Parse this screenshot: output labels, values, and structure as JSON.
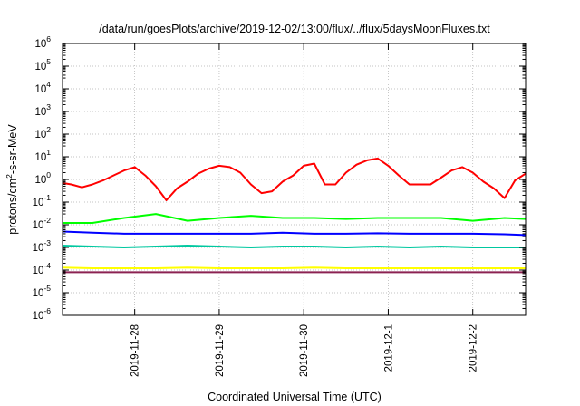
{
  "chart_data": {
    "type": "line",
    "title": "/data/run/goesPlots/archive/2019-12-02/13:00/flux/../flux/5daysMoonFluxes.txt",
    "xlabel": "Coordinated Universal Time (UTC)",
    "ylabel": "protons/cm²-s-sr-MeV",
    "yscale": "log",
    "ylim": [
      1e-06,
      1000000.0
    ],
    "xlim": [
      "2019-11-27T03:30",
      "2019-12-02T15:00"
    ],
    "x_tick_labels": [
      "2019-11-28",
      "2019-11-29",
      "2019-11-30",
      "2019-12-1",
      "2019-12-2"
    ],
    "x_tick_dates": [
      "2019-11-28T00:00",
      "2019-11-29T00:00",
      "2019-11-30T00:00",
      "2019-12-01T00:00",
      "2019-12-02T00:00"
    ],
    "y_ticks": [
      {
        "value": 1e-06,
        "base": "10",
        "exp": "-6"
      },
      {
        "value": 1e-05,
        "base": "10",
        "exp": "-5"
      },
      {
        "value": 0.0001,
        "base": "10",
        "exp": "-4"
      },
      {
        "value": 0.001,
        "base": "10",
        "exp": "-3"
      },
      {
        "value": 0.01,
        "base": "10",
        "exp": "-2"
      },
      {
        "value": 0.1,
        "base": "10",
        "exp": "-1"
      },
      {
        "value": 1,
        "base": "10",
        "exp": "0"
      },
      {
        "value": 10.0,
        "base": "10",
        "exp": "1"
      },
      {
        "value": 100.0,
        "base": "10",
        "exp": "2"
      },
      {
        "value": 1000.0,
        "base": "10",
        "exp": "3"
      },
      {
        "value": 10000.0,
        "base": "10",
        "exp": "4"
      },
      {
        "value": 100000.0,
        "base": "10",
        "exp": "5"
      },
      {
        "value": 1000000.0,
        "base": "10",
        "exp": "6"
      }
    ],
    "grid": "dotted",
    "legend": "none",
    "series": [
      {
        "color": "#ff0000",
        "x": [
          "2019-11-27T03:30",
          "2019-11-27T06:00",
          "2019-11-27T09:00",
          "2019-11-27T12:00",
          "2019-11-27T15:00",
          "2019-11-27T18:00",
          "2019-11-27T21:00",
          "2019-11-28T00:00",
          "2019-11-28T03:00",
          "2019-11-28T06:00",
          "2019-11-28T09:00",
          "2019-11-28T12:00",
          "2019-11-28T15:00",
          "2019-11-28T18:00",
          "2019-11-28T21:00",
          "2019-11-29T00:00",
          "2019-11-29T03:00",
          "2019-11-29T06:00",
          "2019-11-29T09:00",
          "2019-11-29T12:00",
          "2019-11-29T15:00",
          "2019-11-29T18:00",
          "2019-11-29T21:00",
          "2019-11-30T00:00",
          "2019-11-30T03:00",
          "2019-11-30T06:00",
          "2019-11-30T09:00",
          "2019-11-30T12:00",
          "2019-11-30T15:00",
          "2019-11-30T18:00",
          "2019-11-30T21:00",
          "2019-12-01T00:00",
          "2019-12-01T03:00",
          "2019-12-01T06:00",
          "2019-12-01T09:00",
          "2019-12-01T12:00",
          "2019-12-01T15:00",
          "2019-12-01T18:00",
          "2019-12-01T21:00",
          "2019-12-02T00:00",
          "2019-12-02T03:00",
          "2019-12-02T06:00",
          "2019-12-02T09:00",
          "2019-12-02T12:00",
          "2019-12-02T15:00"
        ],
        "values": [
          0.7,
          0.6,
          0.45,
          0.6,
          0.9,
          1.5,
          2.5,
          3.5,
          1.5,
          0.5,
          0.12,
          0.4,
          0.8,
          1.8,
          3,
          4,
          3.5,
          2,
          0.6,
          0.25,
          0.3,
          0.8,
          1.5,
          4,
          5,
          0.6,
          0.6,
          2,
          4.5,
          7,
          8.5,
          4,
          1.5,
          0.6,
          0.6,
          0.6,
          1.2,
          2.5,
          3.5,
          2,
          0.8,
          0.4,
          0.15,
          0.9,
          1.8
        ]
      },
      {
        "color": "#00ff00",
        "x": [
          "2019-11-27T03:30",
          "2019-11-27T12:00",
          "2019-11-27T21:00",
          "2019-11-28T06:00",
          "2019-11-28T15:00",
          "2019-11-29T00:00",
          "2019-11-29T09:00",
          "2019-11-29T18:00",
          "2019-11-30T03:00",
          "2019-11-30T12:00",
          "2019-11-30T21:00",
          "2019-12-01T06:00",
          "2019-12-01T15:00",
          "2019-12-02T00:00",
          "2019-12-02T09:00",
          "2019-12-02T15:00"
        ],
        "values": [
          0.012,
          0.012,
          0.02,
          0.03,
          0.015,
          0.02,
          0.025,
          0.02,
          0.02,
          0.018,
          0.02,
          0.02,
          0.02,
          0.015,
          0.02,
          0.018
        ]
      },
      {
        "color": "#0000ff",
        "x": [
          "2019-11-27T03:30",
          "2019-11-27T12:00",
          "2019-11-27T21:00",
          "2019-11-28T06:00",
          "2019-11-28T15:00",
          "2019-11-29T00:00",
          "2019-11-29T09:00",
          "2019-11-29T18:00",
          "2019-11-30T03:00",
          "2019-11-30T12:00",
          "2019-11-30T21:00",
          "2019-12-01T06:00",
          "2019-12-01T15:00",
          "2019-12-02T00:00",
          "2019-12-02T09:00",
          "2019-12-02T15:00"
        ],
        "values": [
          0.005,
          0.0045,
          0.004,
          0.004,
          0.004,
          0.004,
          0.004,
          0.0045,
          0.004,
          0.004,
          0.0042,
          0.004,
          0.004,
          0.004,
          0.0038,
          0.0035
        ]
      },
      {
        "color": "#00c8a0",
        "x": [
          "2019-11-27T03:30",
          "2019-11-27T12:00",
          "2019-11-27T21:00",
          "2019-11-28T06:00",
          "2019-11-28T15:00",
          "2019-11-29T00:00",
          "2019-11-29T09:00",
          "2019-11-29T18:00",
          "2019-11-30T03:00",
          "2019-11-30T12:00",
          "2019-11-30T21:00",
          "2019-12-01T06:00",
          "2019-12-01T15:00",
          "2019-12-02T00:00",
          "2019-12-02T09:00",
          "2019-12-02T15:00"
        ],
        "values": [
          0.0012,
          0.0011,
          0.001,
          0.0011,
          0.0012,
          0.0011,
          0.001,
          0.0011,
          0.0011,
          0.001,
          0.0011,
          0.001,
          0.0011,
          0.001,
          0.001,
          0.001
        ]
      },
      {
        "color": "#ffff00",
        "x": [
          "2019-11-27T03:30",
          "2019-11-27T12:00",
          "2019-11-27T21:00",
          "2019-11-28T06:00",
          "2019-11-28T15:00",
          "2019-11-29T00:00",
          "2019-11-29T09:00",
          "2019-11-29T18:00",
          "2019-11-30T03:00",
          "2019-11-30T12:00",
          "2019-11-30T21:00",
          "2019-12-01T06:00",
          "2019-12-01T15:00",
          "2019-12-02T00:00",
          "2019-12-02T09:00",
          "2019-12-02T15:00"
        ],
        "values": [
          0.00013,
          0.00012,
          0.00012,
          0.00012,
          0.00013,
          0.00012,
          0.00012,
          0.00012,
          0.00013,
          0.00012,
          0.00012,
          0.00012,
          0.00012,
          0.00012,
          0.00012,
          0.00012
        ]
      },
      {
        "color": "#8b2252",
        "x": [
          "2019-11-27T03:30",
          "2019-11-27T12:00",
          "2019-11-27T21:00",
          "2019-11-28T06:00",
          "2019-11-28T15:00",
          "2019-11-29T00:00",
          "2019-11-29T09:00",
          "2019-11-29T18:00",
          "2019-11-30T03:00",
          "2019-11-30T12:00",
          "2019-11-30T21:00",
          "2019-12-01T06:00",
          "2019-12-01T15:00",
          "2019-12-02T00:00",
          "2019-12-02T09:00",
          "2019-12-02T15:00"
        ],
        "values": [
          8e-05,
          8e-05,
          8e-05,
          8e-05,
          8e-05,
          8e-05,
          8e-05,
          8e-05,
          8e-05,
          8e-05,
          8e-05,
          8e-05,
          8e-05,
          8e-05,
          8e-05,
          8e-05
        ]
      }
    ]
  }
}
